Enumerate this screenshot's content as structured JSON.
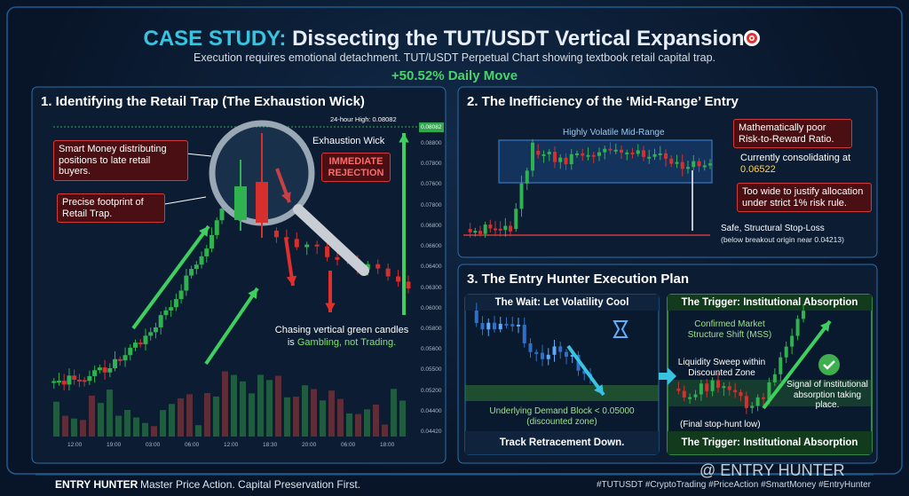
{
  "header": {
    "title_prefix": "CASE STUDY:",
    "title": "Dissecting the TUT/USDT Vertical Expansion",
    "subtitle": "Execution requires emotional detachment. TUT/USDT Perpetual Chart showing textbook retail capital trap.",
    "highlight": "+50.52% Daily Move"
  },
  "panel1": {
    "title": "1. Identifying the Retail Trap (The Exhaustion Wick)",
    "high_label": "24-hour High: 0.08082",
    "price_tag": "0.08082",
    "y_labels": [
      "0.08800",
      "0.07800",
      "0.07600",
      "0.07800",
      "0.06800",
      "0.06600",
      "0.06400",
      "0.06300",
      "0.06000",
      "0.05800",
      "0.05600",
      "0.05500",
      "0.05200",
      "0.04400",
      "0.04420"
    ],
    "x_labels": [
      "12:00",
      "19:00",
      "03:00",
      "06:00",
      "12:00",
      "18:30",
      "20:00",
      "06:00",
      "18:00"
    ],
    "smart_money": "Smart Money distributing positions to late retail buyers.",
    "footprint": "Precise footprint of Retail Trap.",
    "exhaustion_wick": "Exhaustion Wick",
    "rejection": "IMMEDIATE REJECTION",
    "chasing": "Chasing vertical green candles",
    "chasing_is": "is",
    "gambling": "Gambling, not Trading."
  },
  "panel2": {
    "title": "2. The Inefficiency of the ‘Mid-Range’ Entry",
    "range_label": "Highly Volatile Mid-Range",
    "risk_note": "Mathematically poor Risk-to-Reward Ratio.",
    "consolidating": "Currently consolidating at",
    "consolidating_price": "0.06522",
    "too_wide": "Too wide to justify allocation under strict 1% risk rule.",
    "stop_loss": "Safe, Structural Stop-Loss",
    "stop_loss_note": "(below breakout origin near 0.04213)"
  },
  "panel3": {
    "title": "3. The Entry Hunter Execution Plan",
    "wait_header": "The Wait: Let Volatility Cool",
    "demand_block": "Underlying Demand Block < 0.05000",
    "demand_note": "(discounted zone)",
    "wait_footer": "Track Retracement Down.",
    "trigger_header": "The Trigger: Institutional Absorption",
    "mss": "Confirmed Market Structure Shift (MSS)",
    "sweep": "Liquidity Sweep within Discounted Zone",
    "signal": "Signal of institutional absorption taking place.",
    "final_low": "(Final stop-hunt low)",
    "trigger_footer": "The Trigger: Institutional Absorption"
  },
  "footer": {
    "brand": "ENTRY HUNTER",
    "tagline": "Master Price Action. Capital Preservation First.",
    "hashtags": "#TUTUSDT #CryptoTrading #PriceAction #SmartMoney #EntryHunter",
    "watermark": "@ ENTRY HUNTER"
  }
}
